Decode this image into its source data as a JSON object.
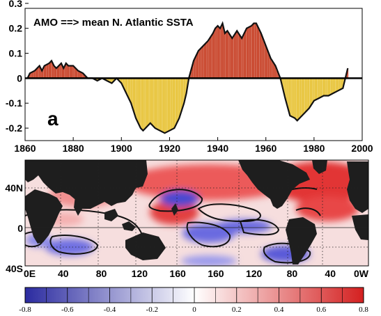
{
  "chart_data": [
    {
      "type": "area",
      "title": "AMO ==> mean N. Atlantic SSTA",
      "panel_label": "a",
      "xlim": [
        1860,
        2000
      ],
      "ylim": [
        -0.25,
        0.28
      ],
      "x_ticks": [
        "1860",
        "1880",
        "1900",
        "1920",
        "1940",
        "1960",
        "1980",
        "2000"
      ],
      "y_ticks": [
        "0.3",
        "0.2",
        "0.1",
        "0",
        "-0.1",
        "-0.2"
      ],
      "positive_color": "#c8442a",
      "negative_color": "#e8c43a",
      "series": [
        {
          "x": [
            1861,
            1862,
            1864,
            1866,
            1867,
            1868,
            1870,
            1871,
            1872,
            1873,
            1875,
            1876,
            1877,
            1878,
            1880,
            1882,
            1884,
            1885,
            1886,
            1887,
            1888,
            1890,
            1892,
            1894,
            1896,
            1897,
            1898,
            1900,
            1902,
            1904,
            1906,
            1908,
            1909,
            1910,
            1912,
            1914,
            1916,
            1918,
            1920,
            1922,
            1924,
            1926,
            1927,
            1928,
            1930,
            1932,
            1934,
            1936,
            1938,
            1939,
            1940,
            1941,
            1942,
            1943,
            1944,
            1946,
            1948,
            1950,
            1952,
            1954,
            1955,
            1956,
            1958,
            1960,
            1962,
            1964,
            1966,
            1968,
            1970,
            1972,
            1973,
            1974,
            1976,
            1978,
            1980,
            1982,
            1984,
            1986,
            1988,
            1990,
            1992,
            1993,
            1994
          ],
          "y": [
            0.0,
            0.02,
            0.03,
            0.05,
            0.03,
            0.05,
            0.06,
            0.07,
            0.05,
            0.04,
            0.06,
            0.04,
            0.06,
            0.05,
            0.05,
            0.03,
            0.02,
            0.01,
            0.0,
            0.0,
            0.0,
            -0.01,
            0.0,
            -0.01,
            -0.02,
            -0.01,
            0.0,
            -0.02,
            -0.06,
            -0.1,
            -0.16,
            -0.2,
            -0.21,
            -0.2,
            -0.18,
            -0.2,
            -0.21,
            -0.22,
            -0.21,
            -0.2,
            -0.16,
            -0.1,
            -0.06,
            0.0,
            0.07,
            0.11,
            0.13,
            0.15,
            0.18,
            0.2,
            0.21,
            0.2,
            0.22,
            0.18,
            0.19,
            0.16,
            0.19,
            0.16,
            0.2,
            0.21,
            0.22,
            0.22,
            0.18,
            0.13,
            0.08,
            0.05,
            0.0,
            -0.08,
            -0.15,
            -0.16,
            -0.17,
            -0.16,
            -0.14,
            -0.12,
            -0.09,
            -0.08,
            -0.07,
            -0.07,
            -0.06,
            -0.05,
            -0.04,
            0.0,
            0.04
          ]
        }
      ]
    },
    {
      "type": "heatmap",
      "x_ticks": [
        "0E",
        "40",
        "80",
        "120",
        "160",
        "160",
        "120",
        "80",
        "40",
        "0W"
      ],
      "y_ticks": [
        "40N",
        "0",
        "40S"
      ],
      "colorbar": {
        "range": [
          -0.8,
          0.8
        ],
        "ticks": [
          "-0.8",
          "-0.6",
          "-0.4",
          "-0.2",
          "0",
          "0.2",
          "0.4",
          "0.6",
          "0.8"
        ],
        "colors": [
          "#2b2ba0",
          "#ffffff",
          "#d42020"
        ]
      },
      "land_color": "#1e1e1e"
    }
  ]
}
